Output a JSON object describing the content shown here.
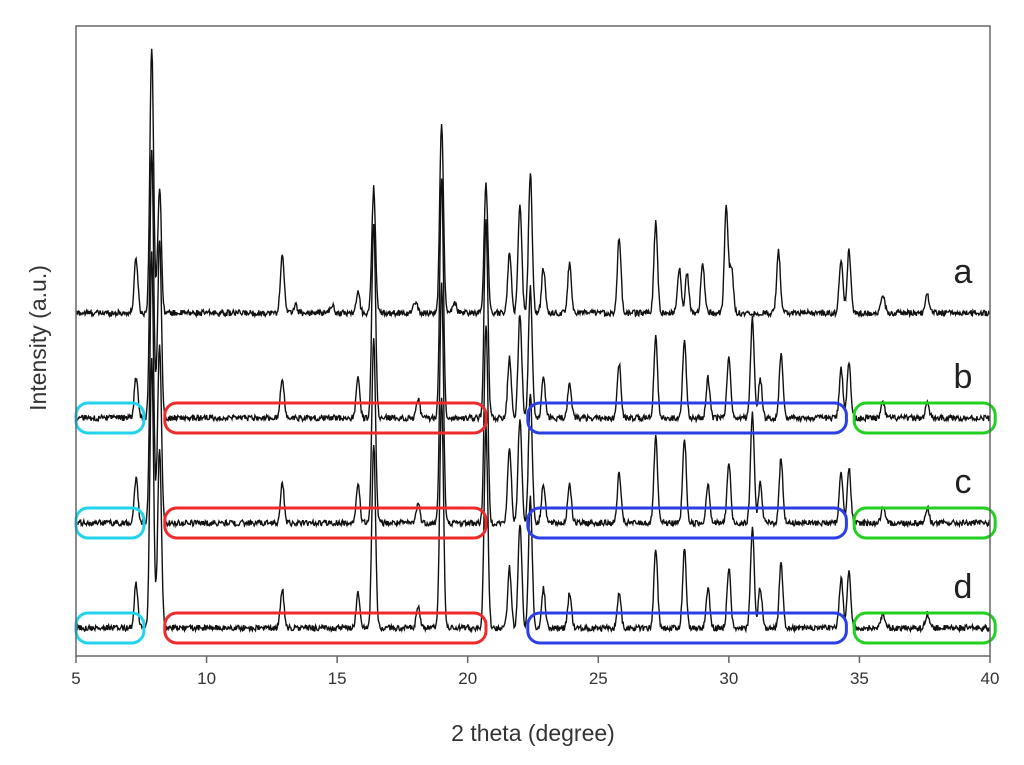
{
  "chart_data": {
    "type": "line",
    "title": "",
    "xlabel": "2 theta (degree)",
    "ylabel": "Intensity (a.u.)",
    "xlim": [
      5,
      40
    ],
    "xticks": [
      5,
      10,
      15,
      20,
      25,
      30,
      35,
      40
    ],
    "y_tick_labels": false,
    "grid": false,
    "legend": "none; series labelled at right end",
    "series": [
      {
        "name": "a",
        "baseline": 0,
        "peaks": [
          {
            "x": 7.3,
            "h": 55
          },
          {
            "x": 7.9,
            "h": 265
          },
          {
            "x": 8.2,
            "h": 125
          },
          {
            "x": 12.9,
            "h": 60
          },
          {
            "x": 13.4,
            "h": 8
          },
          {
            "x": 14.8,
            "h": 8
          },
          {
            "x": 15.8,
            "h": 20
          },
          {
            "x": 16.4,
            "h": 125
          },
          {
            "x": 18.0,
            "h": 12
          },
          {
            "x": 19.0,
            "h": 190
          },
          {
            "x": 19.5,
            "h": 10
          },
          {
            "x": 20.7,
            "h": 130
          },
          {
            "x": 21.6,
            "h": 60
          },
          {
            "x": 22.0,
            "h": 110
          },
          {
            "x": 22.4,
            "h": 140
          },
          {
            "x": 22.9,
            "h": 45
          },
          {
            "x": 23.9,
            "h": 50
          },
          {
            "x": 25.8,
            "h": 75
          },
          {
            "x": 27.2,
            "h": 90
          },
          {
            "x": 28.1,
            "h": 45
          },
          {
            "x": 28.4,
            "h": 40
          },
          {
            "x": 29.0,
            "h": 50
          },
          {
            "x": 29.9,
            "h": 105
          },
          {
            "x": 30.1,
            "h": 45
          },
          {
            "x": 31.9,
            "h": 62
          },
          {
            "x": 34.3,
            "h": 55
          },
          {
            "x": 34.6,
            "h": 62
          },
          {
            "x": 35.9,
            "h": 18
          },
          {
            "x": 37.6,
            "h": 18
          }
        ]
      },
      {
        "name": "b",
        "baseline": -105,
        "peaks": [
          {
            "x": 7.3,
            "h": 40
          },
          {
            "x": 7.9,
            "h": 270
          },
          {
            "x": 8.2,
            "h": 180
          },
          {
            "x": 12.9,
            "h": 40
          },
          {
            "x": 15.8,
            "h": 40
          },
          {
            "x": 16.4,
            "h": 195
          },
          {
            "x": 18.1,
            "h": 20
          },
          {
            "x": 19.0,
            "h": 240
          },
          {
            "x": 20.7,
            "h": 200
          },
          {
            "x": 21.6,
            "h": 60
          },
          {
            "x": 22.0,
            "h": 105
          },
          {
            "x": 22.4,
            "h": 130
          },
          {
            "x": 22.9,
            "h": 40
          },
          {
            "x": 23.9,
            "h": 35
          },
          {
            "x": 25.8,
            "h": 55
          },
          {
            "x": 27.2,
            "h": 80
          },
          {
            "x": 28.3,
            "h": 80
          },
          {
            "x": 29.2,
            "h": 40
          },
          {
            "x": 30.0,
            "h": 60
          },
          {
            "x": 30.9,
            "h": 100
          },
          {
            "x": 31.2,
            "h": 40
          },
          {
            "x": 32.0,
            "h": 65
          },
          {
            "x": 34.3,
            "h": 50
          },
          {
            "x": 34.6,
            "h": 55
          },
          {
            "x": 35.9,
            "h": 15
          },
          {
            "x": 37.6,
            "h": 15
          }
        ]
      },
      {
        "name": "c",
        "baseline": -210,
        "peaks": [
          {
            "x": 7.3,
            "h": 45
          },
          {
            "x": 7.9,
            "h": 270
          },
          {
            "x": 8.2,
            "h": 180
          },
          {
            "x": 12.9,
            "h": 40
          },
          {
            "x": 15.8,
            "h": 38
          },
          {
            "x": 16.4,
            "h": 185
          },
          {
            "x": 18.1,
            "h": 20
          },
          {
            "x": 19.0,
            "h": 240
          },
          {
            "x": 20.7,
            "h": 200
          },
          {
            "x": 21.6,
            "h": 75
          },
          {
            "x": 22.0,
            "h": 105
          },
          {
            "x": 22.4,
            "h": 130
          },
          {
            "x": 22.9,
            "h": 40
          },
          {
            "x": 23.9,
            "h": 40
          },
          {
            "x": 25.8,
            "h": 50
          },
          {
            "x": 27.2,
            "h": 85
          },
          {
            "x": 28.3,
            "h": 85
          },
          {
            "x": 29.2,
            "h": 40
          },
          {
            "x": 30.0,
            "h": 60
          },
          {
            "x": 30.9,
            "h": 110
          },
          {
            "x": 31.2,
            "h": 40
          },
          {
            "x": 32.0,
            "h": 65
          },
          {
            "x": 34.3,
            "h": 50
          },
          {
            "x": 34.6,
            "h": 55
          },
          {
            "x": 35.9,
            "h": 15
          },
          {
            "x": 37.6,
            "h": 15
          }
        ]
      },
      {
        "name": "d",
        "baseline": -315,
        "peaks": [
          {
            "x": 7.3,
            "h": 45
          },
          {
            "x": 7.9,
            "h": 270
          },
          {
            "x": 8.2,
            "h": 180
          },
          {
            "x": 12.9,
            "h": 38
          },
          {
            "x": 15.8,
            "h": 35
          },
          {
            "x": 16.4,
            "h": 185
          },
          {
            "x": 18.1,
            "h": 20
          },
          {
            "x": 19.0,
            "h": 230
          },
          {
            "x": 20.7,
            "h": 200
          },
          {
            "x": 21.6,
            "h": 60
          },
          {
            "x": 22.0,
            "h": 105
          },
          {
            "x": 22.4,
            "h": 130
          },
          {
            "x": 22.9,
            "h": 40
          },
          {
            "x": 23.9,
            "h": 35
          },
          {
            "x": 25.8,
            "h": 35
          },
          {
            "x": 27.2,
            "h": 80
          },
          {
            "x": 28.3,
            "h": 80
          },
          {
            "x": 29.2,
            "h": 40
          },
          {
            "x": 30.0,
            "h": 60
          },
          {
            "x": 30.9,
            "h": 100
          },
          {
            "x": 31.2,
            "h": 40
          },
          {
            "x": 32.0,
            "h": 65
          },
          {
            "x": 34.3,
            "h": 50
          },
          {
            "x": 34.6,
            "h": 55
          },
          {
            "x": 35.9,
            "h": 15
          },
          {
            "x": 37.6,
            "h": 15
          }
        ]
      }
    ],
    "highlight_regions": [
      {
        "series": "b",
        "x_range": [
          5.0,
          7.6
        ],
        "color": "#22d3ee"
      },
      {
        "series": "b",
        "x_range": [
          8.4,
          20.7
        ],
        "color": "#ef2a2a"
      },
      {
        "series": "b",
        "x_range": [
          22.3,
          34.5
        ],
        "color": "#2a3fe6"
      },
      {
        "series": "b",
        "x_range": [
          34.8,
          40.2
        ],
        "color": "#22d11f"
      },
      {
        "series": "c",
        "x_range": [
          5.0,
          7.6
        ],
        "color": "#22d3ee"
      },
      {
        "series": "c",
        "x_range": [
          8.4,
          20.7
        ],
        "color": "#ef2a2a"
      },
      {
        "series": "c",
        "x_range": [
          22.3,
          34.5
        ],
        "color": "#2a3fe6"
      },
      {
        "series": "c",
        "x_range": [
          34.8,
          40.2
        ],
        "color": "#22d11f"
      },
      {
        "series": "d",
        "x_range": [
          5.0,
          7.6
        ],
        "color": "#22d3ee"
      },
      {
        "series": "d",
        "x_range": [
          8.4,
          20.7
        ],
        "color": "#ef2a2a"
      },
      {
        "series": "d",
        "x_range": [
          22.3,
          34.5
        ],
        "color": "#2a3fe6"
      },
      {
        "series": "d",
        "x_range": [
          34.8,
          40.2
        ],
        "color": "#22d11f"
      }
    ],
    "line_color": "#111111"
  }
}
